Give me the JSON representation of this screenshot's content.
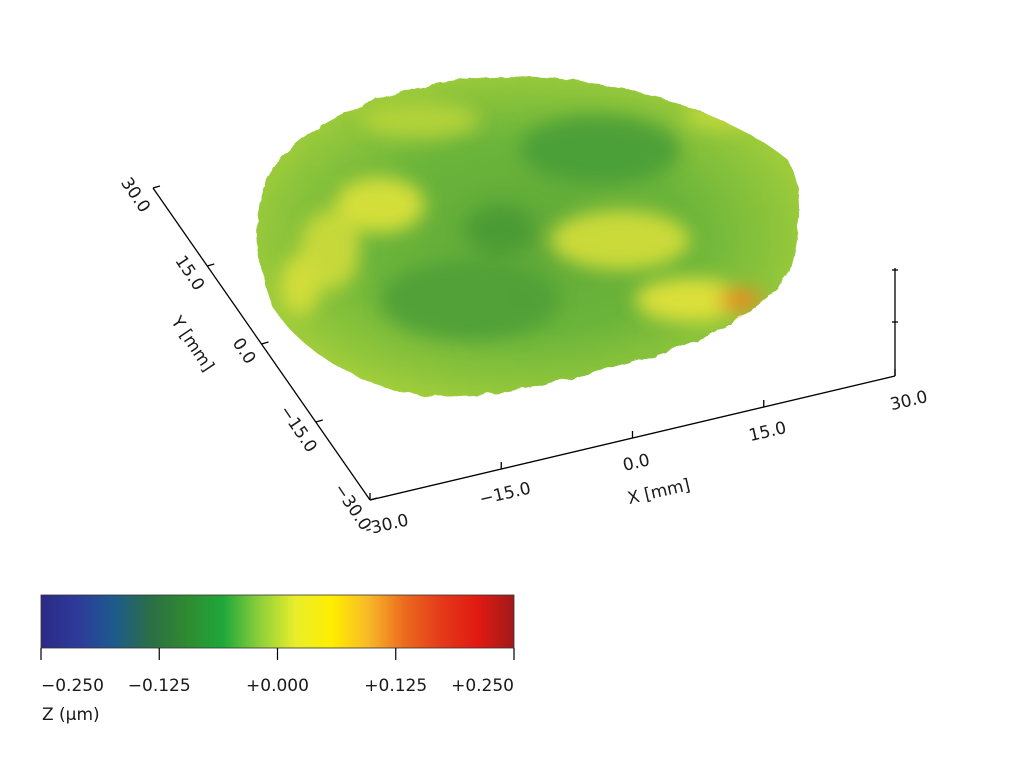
{
  "chart_data": {
    "type": "surface",
    "x_axis": {
      "label": "X [mm]",
      "ticks": [
        "-30.0",
        "−15.0",
        "0.0",
        "15.0",
        "30.0"
      ],
      "range": [
        -30,
        30
      ]
    },
    "y_axis": {
      "label": "Y [mm]",
      "ticks": [
        "30.0",
        "15.0",
        "0.0",
        "−15.0",
        "−30.0"
      ],
      "range": [
        -30,
        30
      ]
    },
    "colorbar": {
      "label": "Z (µm)",
      "ticks": [
        "−0.250",
        "−0.125",
        "+0.000",
        "+0.125",
        "+0.250"
      ],
      "values": [
        -0.25,
        -0.125,
        0,
        0.125,
        0.25
      ],
      "colors": [
        "#2b2a86",
        "#2e3a9a",
        "#1e5a8c",
        "#2a6e46",
        "#2f8a30",
        "#1ea83a",
        "#8ccf3a",
        "#e9ee2a",
        "#ffee00",
        "#f7b928",
        "#ec6a1e",
        "#e43a1a",
        "#e11a12",
        "#a01a1a"
      ]
    },
    "surface": {
      "shape": "circular",
      "dominant_color": "#6db43a",
      "highlight_color": "#e2e23a",
      "hotspot_color": "#ec8a22"
    }
  }
}
